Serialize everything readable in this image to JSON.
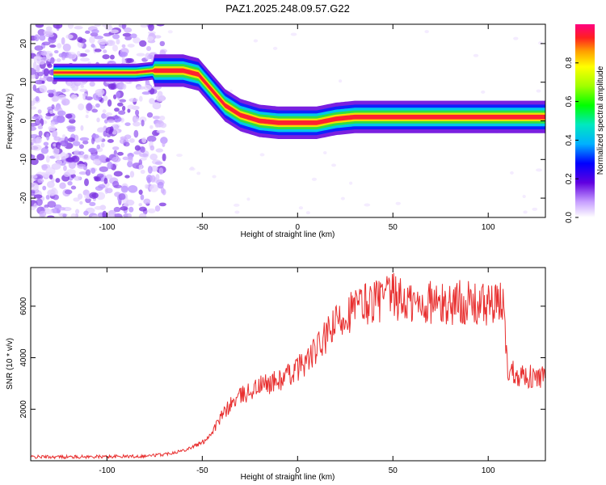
{
  "title": "PAZ1.2025.248.09.57.G22",
  "chart_data": [
    {
      "type": "heatmap",
      "xlabel": "Height of straight line (km)",
      "ylabel": "Frequency (Hz)",
      "xlim": [
        -140,
        130
      ],
      "ylim": [
        -25,
        25
      ],
      "x_ticks": [
        -100,
        -50,
        0,
        50,
        100
      ],
      "y_ticks": [
        -20,
        -10,
        0,
        10,
        20
      ],
      "colorbar_label": "Normalized spectral amplitude",
      "colorbar_ticks": [
        0.0,
        0.2,
        0.4,
        0.6,
        0.8
      ],
      "colorbar_range": [
        0,
        1
      ],
      "ridge": {
        "x": [
          -130,
          -100,
          -85,
          -75,
          -60,
          -52,
          -45,
          -38,
          -30,
          -20,
          -10,
          0,
          10,
          20,
          30,
          50,
          80,
          110,
          130
        ],
        "y": [
          12.5,
          12.5,
          12.5,
          13,
          13,
          12,
          8,
          4,
          1.5,
          0,
          -0.5,
          -0.5,
          -0.5,
          0.5,
          1,
          1,
          1,
          1,
          1
        ]
      }
    },
    {
      "type": "line",
      "xlabel": "Height of straight line (km)",
      "ylabel": "SNR (10 * v/v)",
      "xlim": [
        -140,
        130
      ],
      "ylim": [
        0,
        7500
      ],
      "x_ticks": [
        -100,
        -50,
        0,
        50,
        100
      ],
      "y_ticks": [
        2000,
        4000,
        6000
      ],
      "series": [
        {
          "name": "SNR",
          "color": "#e83030",
          "x": [
            -140,
            -120,
            -100,
            -80,
            -70,
            -60,
            -50,
            -45,
            -40,
            -35,
            -30,
            -25,
            -20,
            -15,
            -10,
            -5,
            0,
            5,
            10,
            15,
            20,
            25,
            30,
            35,
            40,
            45,
            50,
            55,
            60,
            65,
            70,
            75,
            80,
            85,
            90,
            95,
            100,
            105,
            108,
            110,
            112,
            115,
            120,
            125,
            130
          ],
          "y": [
            150,
            150,
            160,
            180,
            250,
            400,
            700,
            1100,
            1700,
            2200,
            2500,
            2700,
            2900,
            3000,
            3100,
            3300,
            3600,
            3900,
            4300,
            4800,
            5300,
            5700,
            5900,
            6100,
            6200,
            6300,
            6400,
            6200,
            6100,
            6000,
            6200,
            6000,
            6100,
            6200,
            6100,
            6000,
            6100,
            6000,
            6200,
            3600,
            3500,
            3400,
            3300,
            3200,
            3300
          ]
        }
      ]
    }
  ]
}
